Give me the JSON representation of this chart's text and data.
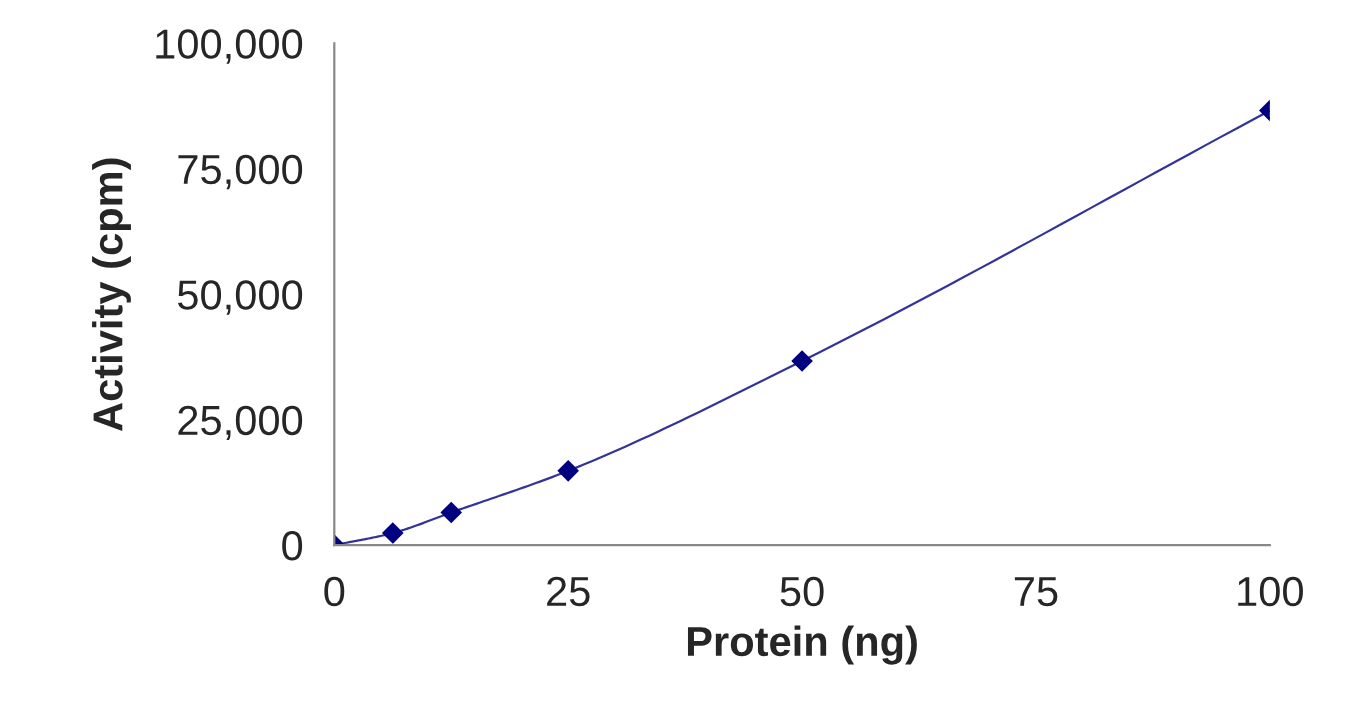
{
  "chart_data": {
    "type": "line",
    "xlabel": "Protein (ng)",
    "ylabel": "Activity (cpm)",
    "series": [
      {
        "color": "#000080",
        "x": [
          0,
          6.25,
          12.5,
          25,
          50,
          100
        ],
        "values": [
          0,
          2400,
          6500,
          14800,
          36700,
          86600
        ]
      }
    ],
    "marker": "diamond",
    "line_style": "solid",
    "grid": false,
    "legend": false,
    "xlim": [
      0,
      100
    ],
    "xticks": [
      0,
      25,
      50,
      75,
      100
    ],
    "ylim": [
      0,
      100000
    ],
    "yticks": [
      0,
      {
        "value": 25000,
        "label": "25,000"
      },
      {
        "value": 50000,
        "label": "50,000"
      },
      {
        "value": 75000,
        "label": "75,000"
      },
      {
        "value": 100000,
        "label": "100,000"
      }
    ]
  }
}
